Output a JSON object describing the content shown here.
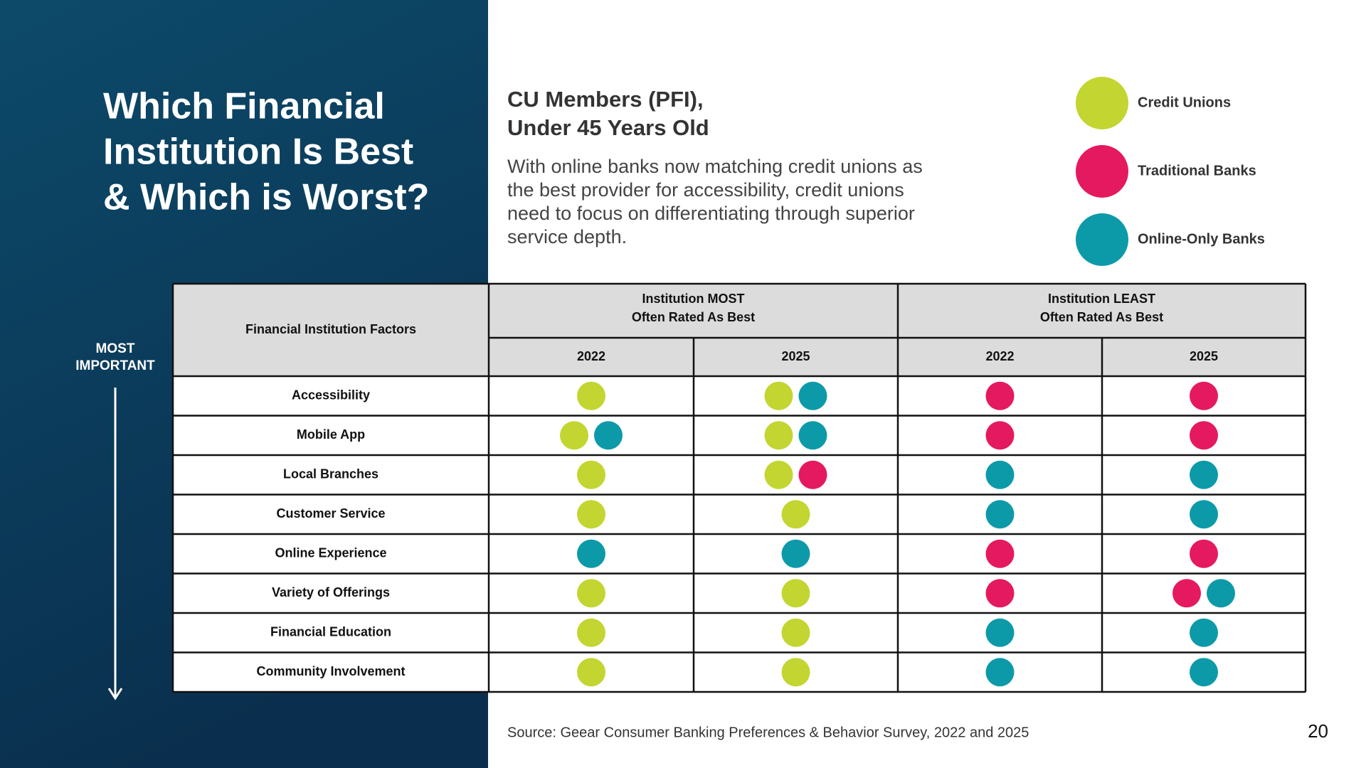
{
  "header": {
    "title_lines": [
      "Which Financial",
      "Institution Is Best",
      "& Which is Worst?"
    ],
    "subtitle_lines": [
      "CU Members (PFI),",
      "Under 45 Years Old"
    ],
    "description_lines": [
      "With online banks now matching credit unions as",
      "the best provider for accessibility, credit unions",
      "need to focus on differentiating through superior",
      "service depth."
    ]
  },
  "legend": [
    {
      "label": "Credit Unions",
      "color": "#c3d531"
    },
    {
      "label": "Traditional Banks",
      "color": "#e5195f"
    },
    {
      "label": "Online-Only Banks",
      "color": "#0d9aa8"
    }
  ],
  "side_label_lines": [
    "MOST",
    "IMPORTANT"
  ],
  "table": {
    "factor_header": "Financial Institution Factors",
    "groups": [
      {
        "lines": [
          "Institution MOST",
          "Often Rated As Best"
        ],
        "years": [
          "2022",
          "2025"
        ]
      },
      {
        "lines": [
          "Institution LEAST",
          "Often Rated As Best"
        ],
        "years": [
          "2022",
          "2025"
        ]
      }
    ],
    "rows": [
      {
        "factor": "Accessibility",
        "cells": [
          [
            "Credit Unions"
          ],
          [
            "Credit Unions",
            "Online-Only Banks"
          ],
          [
            "Traditional Banks"
          ],
          [
            "Traditional Banks"
          ]
        ]
      },
      {
        "factor": "Mobile App",
        "cells": [
          [
            "Credit Unions",
            "Online-Only Banks"
          ],
          [
            "Credit Unions",
            "Online-Only Banks"
          ],
          [
            "Traditional Banks"
          ],
          [
            "Traditional Banks"
          ]
        ]
      },
      {
        "factor": "Local Branches",
        "cells": [
          [
            "Credit Unions"
          ],
          [
            "Credit Unions",
            "Traditional Banks"
          ],
          [
            "Online-Only Banks"
          ],
          [
            "Online-Only Banks"
          ]
        ]
      },
      {
        "factor": "Customer Service",
        "cells": [
          [
            "Credit Unions"
          ],
          [
            "Credit Unions"
          ],
          [
            "Online-Only Banks"
          ],
          [
            "Online-Only Banks"
          ]
        ]
      },
      {
        "factor": "Online Experience",
        "cells": [
          [
            "Online-Only Banks"
          ],
          [
            "Online-Only Banks"
          ],
          [
            "Traditional Banks"
          ],
          [
            "Traditional Banks"
          ]
        ]
      },
      {
        "factor": "Variety of Offerings",
        "cells": [
          [
            "Credit Unions"
          ],
          [
            "Credit Unions"
          ],
          [
            "Traditional Banks"
          ],
          [
            "Traditional Banks",
            "Online-Only Banks"
          ]
        ]
      },
      {
        "factor": "Financial Education",
        "cells": [
          [
            "Credit Unions"
          ],
          [
            "Credit Unions"
          ],
          [
            "Online-Only Banks"
          ],
          [
            "Online-Only Banks"
          ]
        ]
      },
      {
        "factor": "Community Involvement",
        "cells": [
          [
            "Credit Unions"
          ],
          [
            "Credit Unions"
          ],
          [
            "Online-Only Banks"
          ],
          [
            "Online-Only Banks"
          ]
        ]
      }
    ]
  },
  "footer": {
    "source": "Source: Geear Consumer Banking Preferences & Behavior Survey, 2022 and 2025",
    "page_number": "20"
  }
}
